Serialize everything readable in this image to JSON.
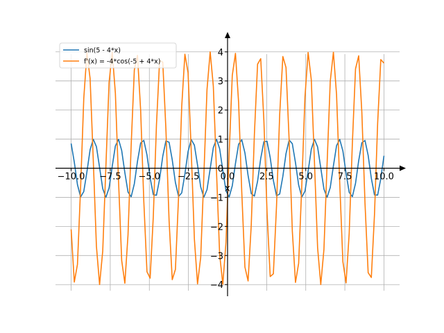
{
  "chart_data": {
    "type": "line",
    "title": "",
    "xlabel": "x",
    "ylabel": "",
    "xlim": [
      -11.0,
      11.0
    ],
    "ylim": [
      -4.4,
      4.4
    ],
    "grid": true,
    "legend_position": "top-left",
    "x_ticks": [
      -10.0,
      -7.5,
      -5.0,
      -2.5,
      0.0,
      2.5,
      5.0,
      7.5,
      10.0
    ],
    "x_tick_labels": [
      "−10.0",
      "−7.5",
      "−5.0",
      "−2.5",
      "0.0",
      "2.5",
      "5.0",
      "7.5",
      "10.0"
    ],
    "y_ticks": [
      -4,
      -3,
      -2,
      -1,
      0,
      1,
      2,
      3,
      4
    ],
    "y_tick_labels": [
      "−4",
      "−3",
      "−2",
      "−1",
      "0",
      "1",
      "2",
      "3",
      "4"
    ],
    "x_range": [
      -10.0,
      10.0
    ],
    "n_points": 100,
    "series": [
      {
        "name": "sin(5 - 4*x)",
        "expression": "sin(5 - 4*x)",
        "color": "#1f77b4"
      },
      {
        "name": "f'(x) = -4*cos(-5 + 4*x)",
        "expression": "-4*cos(-5 + 4*x)",
        "color": "#ff7f0e"
      }
    ]
  },
  "colors": {
    "grid": "#b0b0b0",
    "axis": "#000000",
    "legend_border": "#cccccc"
  }
}
